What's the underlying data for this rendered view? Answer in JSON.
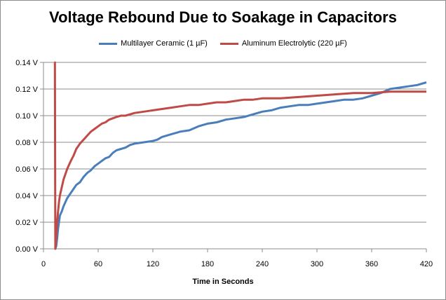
{
  "chart_data": {
    "type": "line",
    "title": "Voltage Rebound Due to Soakage in Capacitors",
    "xlabel": "Time in  Seconds",
    "ylabel": "",
    "xlim": [
      0,
      420
    ],
    "ylim": [
      0,
      0.14
    ],
    "x_ticks": [
      "0",
      "60",
      "120",
      "180",
      "240",
      "300",
      "360",
      "420"
    ],
    "y_ticks": [
      "0.00 V",
      "0.02 V",
      "0.04 V",
      "0.06 V",
      "0.08 V",
      "0.10 V",
      "0.12 V",
      "0.14 V"
    ],
    "grid": "horizontal",
    "legend_position": "top",
    "series": [
      {
        "name": "Multilayer Ceramic (1 µF)",
        "color": "#4a7ebb",
        "x": [
          13,
          14,
          15,
          16,
          17,
          18,
          20,
          22,
          24,
          26,
          28,
          30,
          33,
          36,
          40,
          44,
          48,
          52,
          56,
          60,
          64,
          68,
          72,
          76,
          80,
          85,
          90,
          95,
          100,
          110,
          120,
          125,
          130,
          140,
          150,
          160,
          170,
          180,
          190,
          200,
          210,
          220,
          230,
          240,
          250,
          260,
          270,
          280,
          290,
          300,
          310,
          320,
          330,
          340,
          350,
          360,
          370,
          380,
          390,
          400,
          410,
          420
        ],
        "y": [
          0.0,
          0.002,
          0.008,
          0.015,
          0.02,
          0.025,
          0.028,
          0.032,
          0.035,
          0.038,
          0.04,
          0.042,
          0.045,
          0.048,
          0.05,
          0.054,
          0.057,
          0.059,
          0.062,
          0.064,
          0.066,
          0.068,
          0.069,
          0.072,
          0.074,
          0.075,
          0.076,
          0.078,
          0.079,
          0.08,
          0.081,
          0.082,
          0.084,
          0.086,
          0.088,
          0.089,
          0.092,
          0.094,
          0.095,
          0.097,
          0.098,
          0.099,
          0.101,
          0.103,
          0.104,
          0.106,
          0.107,
          0.108,
          0.108,
          0.109,
          0.11,
          0.111,
          0.112,
          0.112,
          0.113,
          0.115,
          0.117,
          0.12,
          0.121,
          0.122,
          0.123,
          0.125
        ]
      },
      {
        "name": "Aluminum Electrolytic (220 µF)",
        "color": "#be4b48",
        "x": [
          12,
          12.5,
          13,
          14,
          15,
          16,
          17,
          18,
          20,
          22,
          24,
          26,
          28,
          30,
          33,
          36,
          40,
          44,
          48,
          52,
          56,
          60,
          64,
          68,
          72,
          76,
          80,
          85,
          90,
          95,
          100,
          110,
          120,
          130,
          140,
          150,
          160,
          170,
          180,
          190,
          200,
          210,
          220,
          230,
          240,
          260,
          280,
          300,
          320,
          340,
          360,
          380,
          400,
          420
        ],
        "y": [
          0.14,
          0.14,
          0.0,
          0.01,
          0.02,
          0.028,
          0.035,
          0.04,
          0.046,
          0.052,
          0.056,
          0.06,
          0.063,
          0.066,
          0.07,
          0.075,
          0.079,
          0.082,
          0.085,
          0.088,
          0.09,
          0.092,
          0.094,
          0.095,
          0.097,
          0.098,
          0.099,
          0.1,
          0.1,
          0.101,
          0.102,
          0.103,
          0.104,
          0.105,
          0.106,
          0.107,
          0.108,
          0.108,
          0.109,
          0.11,
          0.11,
          0.111,
          0.112,
          0.112,
          0.113,
          0.113,
          0.114,
          0.115,
          0.116,
          0.117,
          0.117,
          0.118,
          0.118,
          0.118
        ]
      }
    ]
  }
}
